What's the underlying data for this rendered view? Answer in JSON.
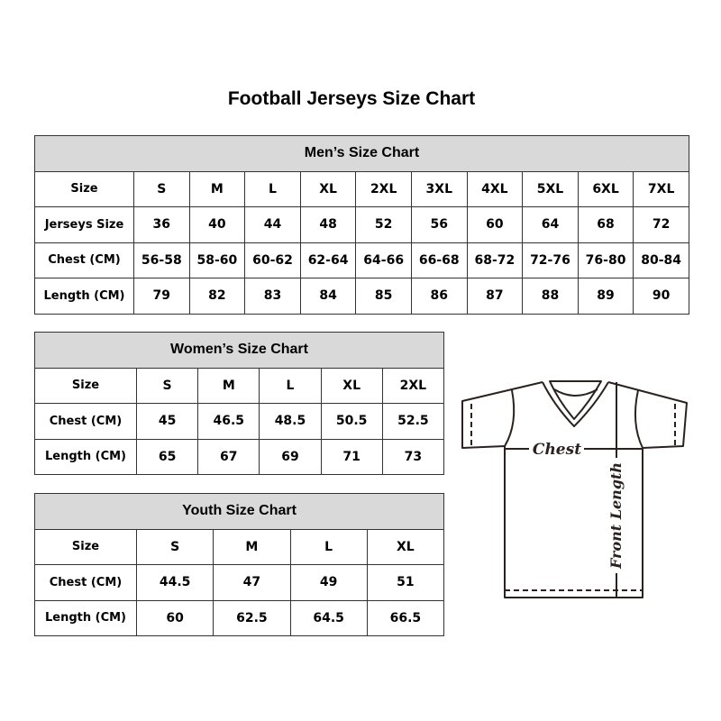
{
  "title": "Football Jerseys Size Chart",
  "men": {
    "heading": "Men’s Size Chart",
    "rows": [
      {
        "label": "Size",
        "values": [
          "S",
          "M",
          "L",
          "XL",
          "2XL",
          "3XL",
          "4XL",
          "5XL",
          "6XL",
          "7XL"
        ]
      },
      {
        "label": "Jerseys Size",
        "values": [
          "36",
          "40",
          "44",
          "48",
          "52",
          "56",
          "60",
          "64",
          "68",
          "72"
        ]
      },
      {
        "label": "Chest (CM)",
        "values": [
          "56-58",
          "58-60",
          "60-62",
          "62-64",
          "64-66",
          "66-68",
          "68-72",
          "72-76",
          "76-80",
          "80-84"
        ]
      },
      {
        "label": "Length (CM)",
        "values": [
          "79",
          "82",
          "83",
          "84",
          "85",
          "86",
          "87",
          "88",
          "89",
          "90"
        ]
      }
    ]
  },
  "women": {
    "heading": "Women’s Size Chart",
    "rows": [
      {
        "label": "Size",
        "values": [
          "S",
          "M",
          "L",
          "XL",
          "2XL"
        ]
      },
      {
        "label": "Chest (CM)",
        "values": [
          "45",
          "46.5",
          "48.5",
          "50.5",
          "52.5"
        ]
      },
      {
        "label": "Length (CM)",
        "values": [
          "65",
          "67",
          "69",
          "71",
          "73"
        ]
      }
    ]
  },
  "youth": {
    "heading": "Youth Size Chart",
    "rows": [
      {
        "label": "Size",
        "values": [
          "S",
          "M",
          "L",
          "XL"
        ]
      },
      {
        "label": "Chest (CM)",
        "values": [
          "44.5",
          "47",
          "49",
          "51"
        ]
      },
      {
        "label": "Length (CM)",
        "values": [
          "60",
          "62.5",
          "64.5",
          "66.5"
        ]
      }
    ]
  },
  "diagram": {
    "chest_label": "Chest",
    "length_label": "Front Length"
  },
  "colors": {
    "header_bg": "#d9d9d9",
    "line": "#2b2220"
  }
}
